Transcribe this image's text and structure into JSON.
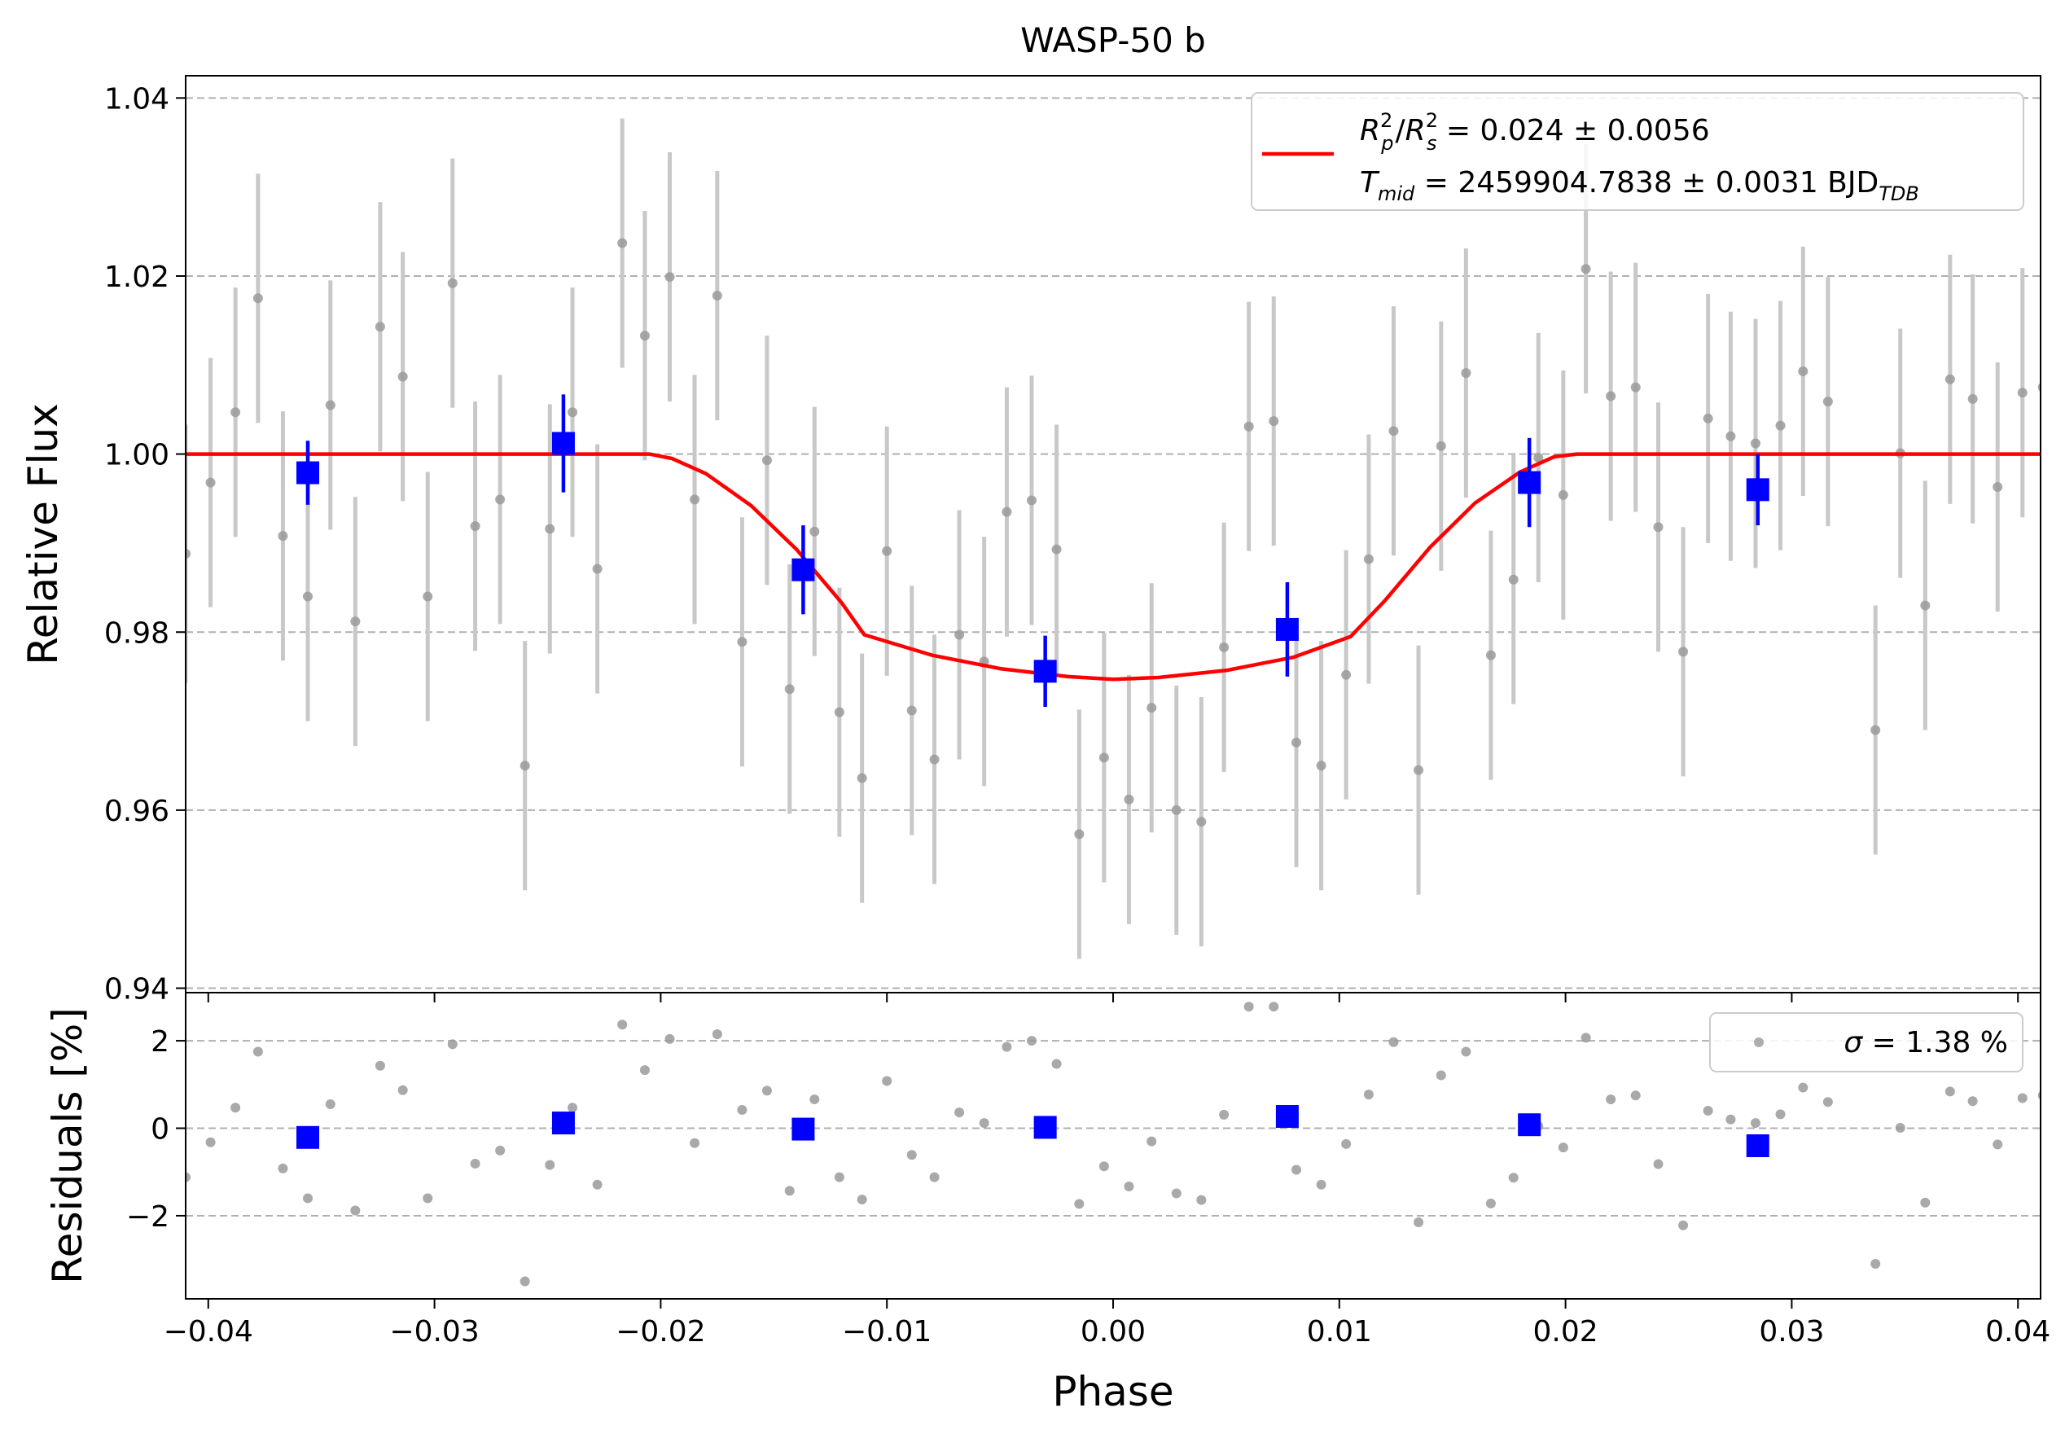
{
  "chart_data": {
    "type": "scatter",
    "title": "WASP-50 b",
    "xlabel": "Phase",
    "ylabel_top": "Relative Flux",
    "ylabel_bottom": "Residuals [%]",
    "xlim": [
      -0.041,
      0.041
    ],
    "ylim_top": [
      0.9395,
      1.0425
    ],
    "ylim_bottom": [
      -3.9,
      3.1
    ],
    "x_ticks": [
      -0.04,
      -0.03,
      -0.02,
      -0.01,
      0.0,
      0.01,
      0.02,
      0.03,
      0.04
    ],
    "x_tick_labels": [
      "−0.04",
      "−0.03",
      "−0.02",
      "−0.01",
      "0.00",
      "0.01",
      "0.02",
      "0.03",
      "0.04"
    ],
    "y_ticks_top": [
      0.94,
      0.96,
      0.98,
      1.0,
      1.02,
      1.04
    ],
    "y_tick_labels_top": [
      "0.94",
      "0.96",
      "0.98",
      "1.00",
      "1.02",
      "1.04"
    ],
    "y_ticks_bottom": [
      -2,
      0,
      2
    ],
    "y_tick_labels_bottom": [
      "−2",
      "0",
      "2"
    ],
    "grid": "horizontal dashed",
    "colors": {
      "raw": "#9a9a9a",
      "raw_err": "#c8c8c8",
      "binned": "#0000ff",
      "model": "#ff0000",
      "grid": "#b0b0b0"
    },
    "legend": {
      "placement": "top-right",
      "fit_rp_label": "R",
      "fit_rp_sub": "p",
      "fit_rp_sup": "2",
      "fit_rs_label": "R",
      "fit_rs_sub": "s",
      "fit_rs_sup": "2",
      "fit_rp_value": " = 0.024 ± 0.0056",
      "fit_tmid_label": "T",
      "fit_tmid_sub": "mid",
      "fit_tmid_value": " = 2459904.7838 ± 0.0031 BJD",
      "fit_tmid_unit_sub": "TDB"
    },
    "residual_legend": {
      "placement": "top-right",
      "sigma_symbol": "σ",
      "sigma_text": " = 1.38 %"
    },
    "raw_points": [
      {
        "x": -0.041,
        "y": 0.9888,
        "e": 0.0145
      },
      {
        "x": -0.0399,
        "y": 0.9968,
        "e": 0.014
      },
      {
        "x": -0.0388,
        "y": 1.0047,
        "e": 0.014
      },
      {
        "x": -0.0378,
        "y": 1.0175,
        "e": 0.014
      },
      {
        "x": -0.0367,
        "y": 0.9908,
        "e": 0.014
      },
      {
        "x": -0.0356,
        "y": 0.984,
        "e": 0.014
      },
      {
        "x": -0.0346,
        "y": 1.0055,
        "e": 0.014
      },
      {
        "x": -0.0335,
        "y": 0.9812,
        "e": 0.014
      },
      {
        "x": -0.0324,
        "y": 1.0143,
        "e": 0.014
      },
      {
        "x": -0.0314,
        "y": 1.0087,
        "e": 0.014
      },
      {
        "x": -0.0303,
        "y": 0.984,
        "e": 0.014
      },
      {
        "x": -0.0292,
        "y": 1.0192,
        "e": 0.014
      },
      {
        "x": -0.0282,
        "y": 0.9919,
        "e": 0.014
      },
      {
        "x": -0.0271,
        "y": 0.9949,
        "e": 0.014
      },
      {
        "x": -0.026,
        "y": 0.965,
        "e": 0.014
      },
      {
        "x": -0.0249,
        "y": 0.9916,
        "e": 0.014
      },
      {
        "x": -0.0239,
        "y": 1.0047,
        "e": 0.014
      },
      {
        "x": -0.0228,
        "y": 0.9871,
        "e": 0.014
      },
      {
        "x": -0.0217,
        "y": 1.0237,
        "e": 0.014
      },
      {
        "x": -0.0207,
        "y": 1.0133,
        "e": 0.014
      },
      {
        "x": -0.0196,
        "y": 1.0199,
        "e": 0.014
      },
      {
        "x": -0.0185,
        "y": 0.9949,
        "e": 0.014
      },
      {
        "x": -0.0175,
        "y": 1.0178,
        "e": 0.014
      },
      {
        "x": -0.0164,
        "y": 0.9789,
        "e": 0.014
      },
      {
        "x": -0.0153,
        "y": 0.9993,
        "e": 0.014
      },
      {
        "x": -0.0143,
        "y": 0.9736,
        "e": 0.014
      },
      {
        "x": -0.0132,
        "y": 0.9913,
        "e": 0.014
      },
      {
        "x": -0.0121,
        "y": 0.971,
        "e": 0.014
      },
      {
        "x": -0.0111,
        "y": 0.9636,
        "e": 0.014
      },
      {
        "x": -0.01,
        "y": 0.9891,
        "e": 0.014
      },
      {
        "x": -0.0089,
        "y": 0.9712,
        "e": 0.014
      },
      {
        "x": -0.0079,
        "y": 0.9657,
        "e": 0.014
      },
      {
        "x": -0.0068,
        "y": 0.9797,
        "e": 0.014
      },
      {
        "x": -0.0057,
        "y": 0.9767,
        "e": 0.014
      },
      {
        "x": -0.0047,
        "y": 0.9935,
        "e": 0.014
      },
      {
        "x": -0.0036,
        "y": 0.9948,
        "e": 0.014
      },
      {
        "x": -0.0025,
        "y": 0.9893,
        "e": 0.014
      },
      {
        "x": -0.0015,
        "y": 0.9573,
        "e": 0.014
      },
      {
        "x": -0.0004,
        "y": 0.9659,
        "e": 0.014
      },
      {
        "x": 0.0007,
        "y": 0.9612,
        "e": 0.014
      },
      {
        "x": 0.0017,
        "y": 0.9715,
        "e": 0.014
      },
      {
        "x": 0.0028,
        "y": 0.96,
        "e": 0.014
      },
      {
        "x": 0.0039,
        "y": 0.9587,
        "e": 0.014
      },
      {
        "x": 0.0049,
        "y": 0.9783,
        "e": 0.014
      },
      {
        "x": 0.006,
        "y": 1.0031,
        "e": 0.014
      },
      {
        "x": 0.0071,
        "y": 1.0037,
        "e": 0.014
      },
      {
        "x": 0.0081,
        "y": 0.9676,
        "e": 0.014
      },
      {
        "x": 0.0092,
        "y": 0.965,
        "e": 0.014
      },
      {
        "x": 0.0103,
        "y": 0.9752,
        "e": 0.014
      },
      {
        "x": 0.0113,
        "y": 0.9882,
        "e": 0.014
      },
      {
        "x": 0.0124,
        "y": 1.0026,
        "e": 0.014
      },
      {
        "x": 0.0135,
        "y": 0.9645,
        "e": 0.014
      },
      {
        "x": 0.0145,
        "y": 1.0009,
        "e": 0.014
      },
      {
        "x": 0.0156,
        "y": 1.0091,
        "e": 0.014
      },
      {
        "x": 0.0167,
        "y": 0.9774,
        "e": 0.014
      },
      {
        "x": 0.0177,
        "y": 0.9859,
        "e": 0.014
      },
      {
        "x": 0.0188,
        "y": 0.9996,
        "e": 0.014
      },
      {
        "x": 0.0199,
        "y": 0.9954,
        "e": 0.014
      },
      {
        "x": 0.0209,
        "y": 1.0208,
        "e": 0.014
      },
      {
        "x": 0.022,
        "y": 1.0065,
        "e": 0.014
      },
      {
        "x": 0.0231,
        "y": 1.0075,
        "e": 0.014
      },
      {
        "x": 0.0241,
        "y": 0.9918,
        "e": 0.014
      },
      {
        "x": 0.0252,
        "y": 0.9778,
        "e": 0.014
      },
      {
        "x": 0.0263,
        "y": 1.004,
        "e": 0.014
      },
      {
        "x": 0.0273,
        "y": 1.002,
        "e": 0.014
      },
      {
        "x": 0.0284,
        "y": 1.0012,
        "e": 0.014
      },
      {
        "x": 0.0295,
        "y": 1.0032,
        "e": 0.014
      },
      {
        "x": 0.0305,
        "y": 1.0093,
        "e": 0.014
      },
      {
        "x": 0.0316,
        "y": 1.0059,
        "e": 0.014
      },
      {
        "x": 0.0337,
        "y": 0.969,
        "e": 0.014
      },
      {
        "x": 0.0348,
        "y": 1.0001,
        "e": 0.014
      },
      {
        "x": 0.0359,
        "y": 0.983,
        "e": 0.014
      },
      {
        "x": 0.037,
        "y": 1.0084,
        "e": 0.014
      },
      {
        "x": 0.038,
        "y": 1.0062,
        "e": 0.014
      },
      {
        "x": 0.0391,
        "y": 0.9963,
        "e": 0.014
      },
      {
        "x": 0.0402,
        "y": 1.0069,
        "e": 0.014
      },
      {
        "x": 0.0411,
        "y": 1.0075,
        "e": 0.014
      }
    ],
    "binned_points": [
      {
        "x": -0.0356,
        "y": 0.9979,
        "e": 0.0036
      },
      {
        "x": -0.0243,
        "y": 1.0012,
        "e": 0.0055
      },
      {
        "x": -0.0137,
        "y": 0.987,
        "e": 0.005
      },
      {
        "x": -0.003,
        "y": 0.9756,
        "e": 0.004
      },
      {
        "x": 0.0077,
        "y": 0.9803,
        "e": 0.0053
      },
      {
        "x": 0.0184,
        "y": 0.9968,
        "e": 0.005
      },
      {
        "x": 0.0285,
        "y": 0.996,
        "e": 0.004
      }
    ],
    "model": {
      "x": [
        -0.041,
        -0.0205,
        -0.0195,
        -0.018,
        -0.016,
        -0.014,
        -0.012,
        -0.011,
        -0.008,
        -0.005,
        -0.002,
        0.0,
        0.002,
        0.005,
        0.008,
        0.0105,
        0.012,
        0.014,
        0.016,
        0.018,
        0.0195,
        0.0205,
        0.041
      ],
      "y": [
        1.0,
        1.0,
        0.9995,
        0.9978,
        0.9942,
        0.9893,
        0.9833,
        0.9797,
        0.9774,
        0.9759,
        0.975,
        0.9747,
        0.9749,
        0.9757,
        0.9772,
        0.9795,
        0.9835,
        0.9895,
        0.9945,
        0.998,
        0.9997,
        1.0,
        1.0
      ]
    },
    "residual_points": [
      {
        "x": -0.041,
        "y": -1.12
      },
      {
        "x": -0.0399,
        "y": -0.32
      },
      {
        "x": -0.0388,
        "y": 0.47
      },
      {
        "x": -0.0378,
        "y": 1.75
      },
      {
        "x": -0.0367,
        "y": -0.92
      },
      {
        "x": -0.0356,
        "y": -1.6
      },
      {
        "x": -0.0346,
        "y": 0.55
      },
      {
        "x": -0.0335,
        "y": -1.88
      },
      {
        "x": -0.0324,
        "y": 1.43
      },
      {
        "x": -0.0314,
        "y": 0.87
      },
      {
        "x": -0.0303,
        "y": -1.6
      },
      {
        "x": -0.0292,
        "y": 1.92
      },
      {
        "x": -0.0282,
        "y": -0.81
      },
      {
        "x": -0.0271,
        "y": -0.51
      },
      {
        "x": -0.026,
        "y": -3.5
      },
      {
        "x": -0.0249,
        "y": -0.84
      },
      {
        "x": -0.0239,
        "y": 0.47
      },
      {
        "x": -0.0228,
        "y": -1.29
      },
      {
        "x": -0.0217,
        "y": 2.37
      },
      {
        "x": -0.0207,
        "y": 1.33
      },
      {
        "x": -0.0196,
        "y": 2.04
      },
      {
        "x": -0.0185,
        "y": -0.34
      },
      {
        "x": -0.0175,
        "y": 2.15
      },
      {
        "x": -0.0164,
        "y": 0.42
      },
      {
        "x": -0.0153,
        "y": 0.86
      },
      {
        "x": -0.0143,
        "y": -1.43
      },
      {
        "x": -0.0132,
        "y": 0.66
      },
      {
        "x": -0.0121,
        "y": -1.12
      },
      {
        "x": -0.0111,
        "y": -1.63
      },
      {
        "x": -0.01,
        "y": 1.08
      },
      {
        "x": -0.0089,
        "y": -0.61
      },
      {
        "x": -0.0079,
        "y": -1.12
      },
      {
        "x": -0.0068,
        "y": 0.36
      },
      {
        "x": -0.0057,
        "y": 0.12
      },
      {
        "x": -0.0047,
        "y": 1.86
      },
      {
        "x": -0.0036,
        "y": 2.0
      },
      {
        "x": -0.0025,
        "y": 1.47
      },
      {
        "x": -0.0015,
        "y": -1.73
      },
      {
        "x": -0.0004,
        "y": -0.87
      },
      {
        "x": 0.0007,
        "y": -1.33
      },
      {
        "x": 0.0017,
        "y": -0.3
      },
      {
        "x": 0.0028,
        "y": -1.49
      },
      {
        "x": 0.0039,
        "y": -1.64
      },
      {
        "x": 0.0049,
        "y": 0.31
      },
      {
        "x": 0.006,
        "y": 2.78
      },
      {
        "x": 0.0071,
        "y": 2.78
      },
      {
        "x": 0.0081,
        "y": -0.95
      },
      {
        "x": 0.0092,
        "y": -1.29
      },
      {
        "x": 0.0103,
        "y": -0.36
      },
      {
        "x": 0.0113,
        "y": 0.77
      },
      {
        "x": 0.0124,
        "y": 1.97
      },
      {
        "x": 0.0135,
        "y": -2.15
      },
      {
        "x": 0.0145,
        "y": 1.21
      },
      {
        "x": 0.0156,
        "y": 1.75
      },
      {
        "x": 0.0167,
        "y": -1.72
      },
      {
        "x": 0.0177,
        "y": -1.13
      },
      {
        "x": 0.0188,
        "y": 0.05
      },
      {
        "x": 0.0199,
        "y": -0.44
      },
      {
        "x": 0.0209,
        "y": 2.07
      },
      {
        "x": 0.022,
        "y": 0.66
      },
      {
        "x": 0.0231,
        "y": 0.75
      },
      {
        "x": 0.0241,
        "y": -0.82
      },
      {
        "x": 0.0252,
        "y": -2.22
      },
      {
        "x": 0.0263,
        "y": 0.4
      },
      {
        "x": 0.0273,
        "y": 0.2
      },
      {
        "x": 0.0284,
        "y": 0.12
      },
      {
        "x": 0.0295,
        "y": 0.32
      },
      {
        "x": 0.0305,
        "y": 0.93
      },
      {
        "x": 0.0316,
        "y": 0.6
      },
      {
        "x": 0.0337,
        "y": -3.1
      },
      {
        "x": 0.0348,
        "y": 0.01
      },
      {
        "x": 0.0359,
        "y": -1.7
      },
      {
        "x": 0.037,
        "y": 0.84
      },
      {
        "x": 0.038,
        "y": 0.62
      },
      {
        "x": 0.0391,
        "y": -0.37
      },
      {
        "x": 0.0402,
        "y": 0.69
      },
      {
        "x": 0.0411,
        "y": 0.75
      }
    ],
    "binned_residuals": [
      {
        "x": -0.0356,
        "y": -0.21
      },
      {
        "x": -0.0243,
        "y": 0.12
      },
      {
        "x": -0.0137,
        "y": -0.02
      },
      {
        "x": -0.003,
        "y": 0.02
      },
      {
        "x": 0.0077,
        "y": 0.27
      },
      {
        "x": 0.0184,
        "y": 0.08
      },
      {
        "x": 0.0285,
        "y": -0.4
      }
    ]
  }
}
